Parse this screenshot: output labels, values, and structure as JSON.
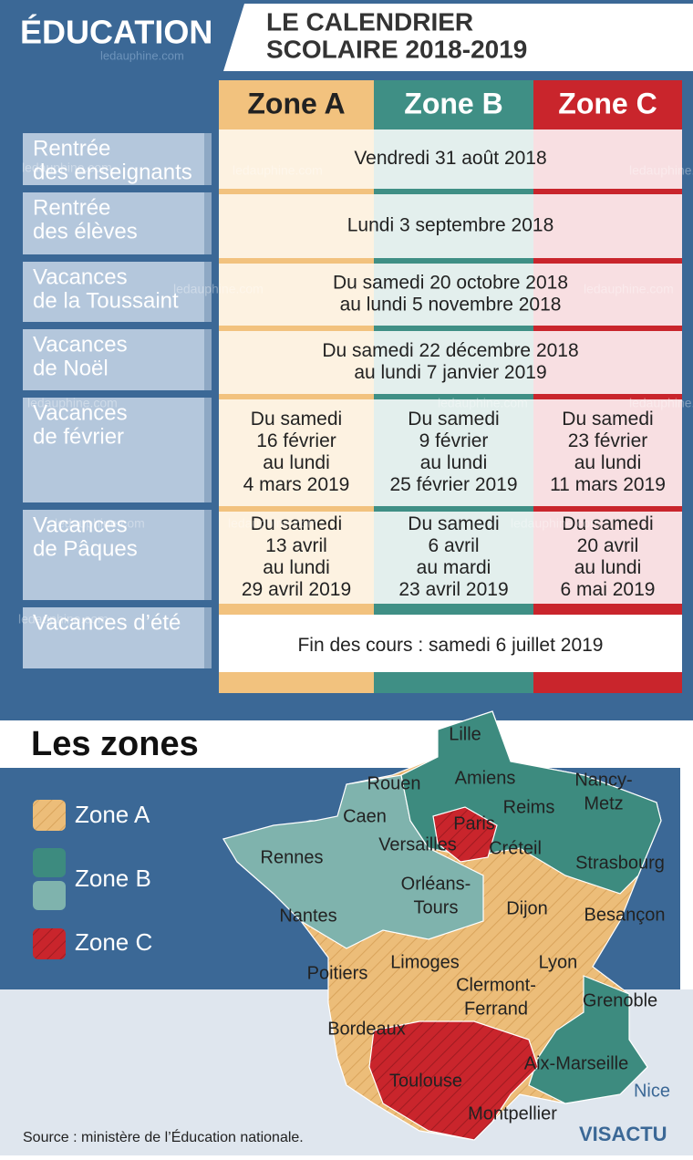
{
  "header": {
    "section": "ÉDUCATION",
    "title": [
      "LE CALENDRIER",
      "SCOLAIRE 2018-2019"
    ],
    "watermark": "ledauphine.com"
  },
  "table": {
    "columns": [
      "Zone A",
      "Zone B",
      "Zone C"
    ],
    "rows": [
      {
        "label": [
          "Rentrée",
          "des enseignants"
        ],
        "all": [
          "Vendredi 31 août 2018"
        ]
      },
      {
        "label": [
          "Rentrée",
          "des élèves"
        ],
        "all": [
          "Lundi 3 septembre 2018"
        ]
      },
      {
        "label": [
          "Vacances",
          "de la Toussaint"
        ],
        "all": [
          "Du samedi 20 octobre 2018",
          "au lundi 5 novembre 2018"
        ]
      },
      {
        "label": [
          "Vacances",
          "de Noël"
        ],
        "all": [
          "Du samedi 22 décembre 2018",
          "au lundi 7 janvier 2019"
        ]
      },
      {
        "label": [
          "Vacances",
          "de février"
        ],
        "zones": [
          [
            "Du samedi",
            "16 février",
            "au lundi",
            "4 mars 2019"
          ],
          [
            "Du samedi",
            "9 février",
            "au lundi",
            "25 février 2019"
          ],
          [
            "Du samedi",
            "23 février",
            "au lundi",
            "11 mars 2019"
          ]
        ]
      },
      {
        "label": [
          "Vacances",
          "de Pâques"
        ],
        "zones": [
          [
            "Du samedi",
            "13 avril",
            "au lundi",
            "29 avril 2019"
          ],
          [
            "Du samedi",
            "6 avril",
            "au mardi",
            "23 avril 2019"
          ],
          [
            "Du samedi",
            "20 avril",
            "au lundi",
            "6 mai 2019"
          ]
        ]
      },
      {
        "label": [
          "Vacances d’été"
        ],
        "all": [
          "Fin des cours : samedi 6 juillet 2019"
        ]
      }
    ]
  },
  "map": {
    "title": "Les zones",
    "legend": [
      "Zone A",
      "Zone B",
      "Zone C"
    ],
    "cities": [
      [
        "Lille"
      ],
      [
        "Rouen"
      ],
      [
        "Amiens"
      ],
      [
        "Nancy-",
        "Metz"
      ],
      [
        "Reims"
      ],
      [
        "Caen"
      ],
      [
        "Paris"
      ],
      [
        "Versailles"
      ],
      [
        "Créteil"
      ],
      [
        "Rennes"
      ],
      [
        "Strasbourg"
      ],
      [
        "Orléans-",
        "Tours"
      ],
      [
        "Dijon"
      ],
      [
        "Nantes"
      ],
      [
        "Besançon"
      ],
      [
        "Poitiers"
      ],
      [
        "Limoges"
      ],
      [
        "Lyon"
      ],
      [
        "Clermont-",
        "Ferrand"
      ],
      [
        "Grenoble"
      ],
      [
        "Bordeaux"
      ],
      [
        "Aix-Marseille"
      ],
      [
        "Toulouse"
      ],
      [
        "Nice"
      ],
      [
        "Montpellier"
      ]
    ]
  },
  "source": "Source : ministère de l’Éducation nationale.",
  "logo": "VISACTU"
}
